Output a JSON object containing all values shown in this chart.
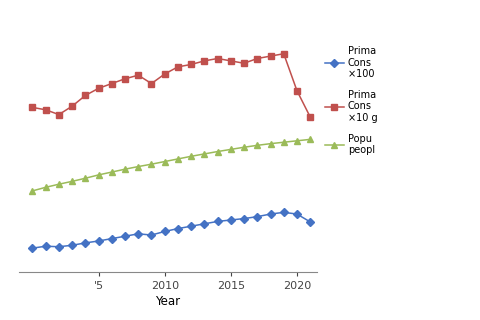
{
  "years": [
    2000,
    2001,
    2002,
    2003,
    2004,
    2005,
    2006,
    2007,
    2008,
    2009,
    2010,
    2011,
    2012,
    2013,
    2014,
    2015,
    2016,
    2017,
    2018,
    2019,
    2020,
    2021
  ],
  "blue_values": [
    3.5,
    3.58,
    3.56,
    3.62,
    3.72,
    3.8,
    3.9,
    4.0,
    4.1,
    4.05,
    4.2,
    4.32,
    4.42,
    4.52,
    4.62,
    4.68,
    4.74,
    4.82,
    4.93,
    5.0,
    4.93,
    4.6
  ],
  "red_values": [
    9.4,
    9.3,
    9.1,
    9.45,
    9.9,
    10.2,
    10.4,
    10.6,
    10.75,
    10.4,
    10.8,
    11.1,
    11.2,
    11.35,
    11.45,
    11.35,
    11.25,
    11.45,
    11.55,
    11.65,
    10.1,
    9.0
  ],
  "green_values": [
    5.9,
    6.05,
    6.18,
    6.3,
    6.43,
    6.57,
    6.69,
    6.81,
    6.92,
    7.02,
    7.13,
    7.24,
    7.35,
    7.45,
    7.55,
    7.64,
    7.73,
    7.81,
    7.88,
    7.94,
    8.0,
    8.06
  ],
  "blue_color": "#4472C4",
  "red_color": "#C0504D",
  "green_color": "#9BBB59",
  "xlabel": "Year",
  "xtick_start": 2005,
  "xticks": [
    2005,
    2010,
    2015,
    2020
  ],
  "xlim_left": 1999.0,
  "xlim_right": 2021.5,
  "ylim": [
    2.5,
    13.5
  ],
  "background_color": "#ffffff",
  "legend_blue1": "Prima",
  "legend_blue2": "Cons",
  "legend_blue3": "×100 ",
  "legend_red1": "Prima",
  "legend_red2": "Cons",
  "legend_red3": "×10 g",
  "legend_green1": "Popu",
  "legend_green2": "peopl"
}
